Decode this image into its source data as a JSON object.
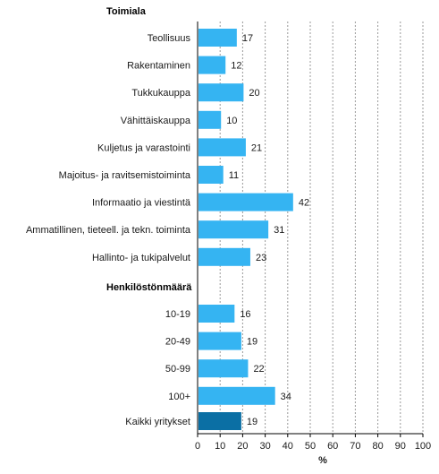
{
  "chart_data": {
    "type": "bar",
    "orientation": "horizontal",
    "xlabel": "%",
    "xlim": [
      0,
      100
    ],
    "xticks": [
      0,
      10,
      20,
      30,
      40,
      50,
      60,
      70,
      80,
      90,
      100
    ],
    "grid": "vertical dashed",
    "groups": [
      {
        "label": "Toimiala",
        "categories": [
          "Teollisuus",
          "Rakentaminen",
          "Tukkukauppa",
          "Vähittäiskauppa",
          "Kuljetus ja varastointi",
          "Majoitus- ja ravitsemistoiminta",
          "Informaatio ja viestintä",
          "Ammatillinen, tieteell. ja tekn. toiminta",
          "Hallinto- ja tukipalvelut"
        ],
        "values": [
          17,
          12,
          20,
          10,
          21,
          11,
          42,
          31,
          23
        ]
      },
      {
        "label": "Henkilöstönmäärä",
        "categories": [
          "10-19",
          "20-49",
          "50-99",
          "100+"
        ],
        "values": [
          16,
          19,
          22,
          34
        ]
      },
      {
        "label": "",
        "categories": [
          "Kaikki yritykset"
        ],
        "values": [
          19
        ],
        "highlight": true
      }
    ],
    "colors": {
      "bar": "#35b4f2",
      "highlight": "#0b6fa4",
      "grid": "#9a9a9a",
      "axis": "#000000"
    }
  }
}
